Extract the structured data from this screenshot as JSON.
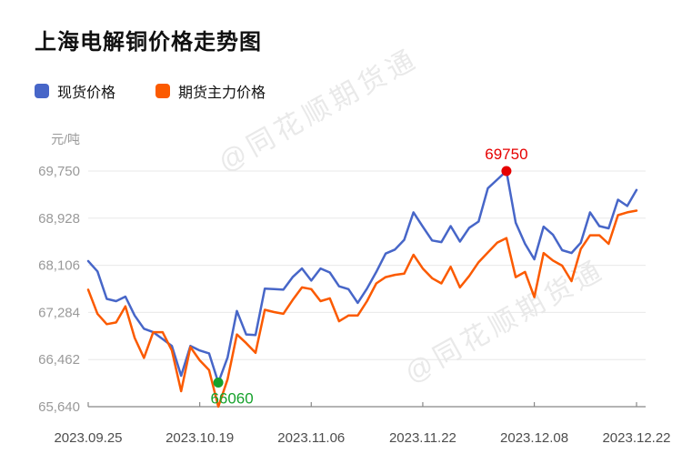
{
  "title": "上海电解铜价格走势图",
  "watermark": "@同花顺期货通",
  "legend": {
    "items": [
      "现货价格",
      "期货主力价格"
    ]
  },
  "chart_data": {
    "type": "line",
    "title": "上海电解铜价格走势图",
    "unit": "元/吨",
    "ylabel": "元/吨",
    "xlabel": "",
    "grid": true,
    "legend_position": "top-left",
    "ylim": [
      65640,
      69750
    ],
    "y_ticks": [
      65640,
      66462,
      67284,
      68106,
      68928,
      69750
    ],
    "x_tick_labels": [
      "2023.09.25",
      "2023.10.19",
      "2023.11.06",
      "2023.11.22",
      "2023.12.08",
      "2023.12.22"
    ],
    "x_tick_indices": [
      0,
      12,
      24,
      36,
      48,
      59
    ],
    "series": [
      {
        "name": "现货价格",
        "color": "#4766C8",
        "values": [
          68180,
          68000,
          67520,
          67480,
          67560,
          67230,
          67000,
          66940,
          66820,
          66700,
          66180,
          66700,
          66620,
          66570,
          66060,
          66500,
          67310,
          66900,
          66890,
          67700,
          67690,
          67680,
          67900,
          68050,
          67840,
          68050,
          67980,
          67740,
          67690,
          67450,
          67700,
          67990,
          68310,
          68380,
          68550,
          69030,
          68780,
          68540,
          68510,
          68790,
          68520,
          68760,
          68870,
          69450,
          69600,
          69750,
          68850,
          68480,
          68210,
          68780,
          68640,
          68370,
          68320,
          68500,
          69030,
          68790,
          68750,
          69250,
          69140,
          69420
        ]
      },
      {
        "name": "期货主力价格",
        "color": "#FB5A00",
        "values": [
          67680,
          67260,
          67080,
          67110,
          67390,
          66840,
          66490,
          66940,
          66940,
          66620,
          65910,
          66680,
          66450,
          66280,
          65640,
          66120,
          66900,
          66750,
          66580,
          67330,
          67290,
          67260,
          67500,
          67720,
          67690,
          67480,
          67530,
          67130,
          67230,
          67230,
          67480,
          67790,
          67900,
          67940,
          67960,
          68290,
          68050,
          67880,
          67790,
          68080,
          67720,
          67920,
          68160,
          68330,
          68500,
          68580,
          67900,
          67990,
          67550,
          68320,
          68190,
          68100,
          67830,
          68390,
          68630,
          68630,
          68480,
          68980,
          69030,
          69060
        ]
      }
    ],
    "annotations": [
      {
        "series": 0,
        "index": 45,
        "label": "69750",
        "color": "#E60000",
        "position": "above"
      },
      {
        "series": 0,
        "index": 14,
        "label": "66060",
        "color": "#16A22C",
        "position": "below"
      }
    ]
  }
}
